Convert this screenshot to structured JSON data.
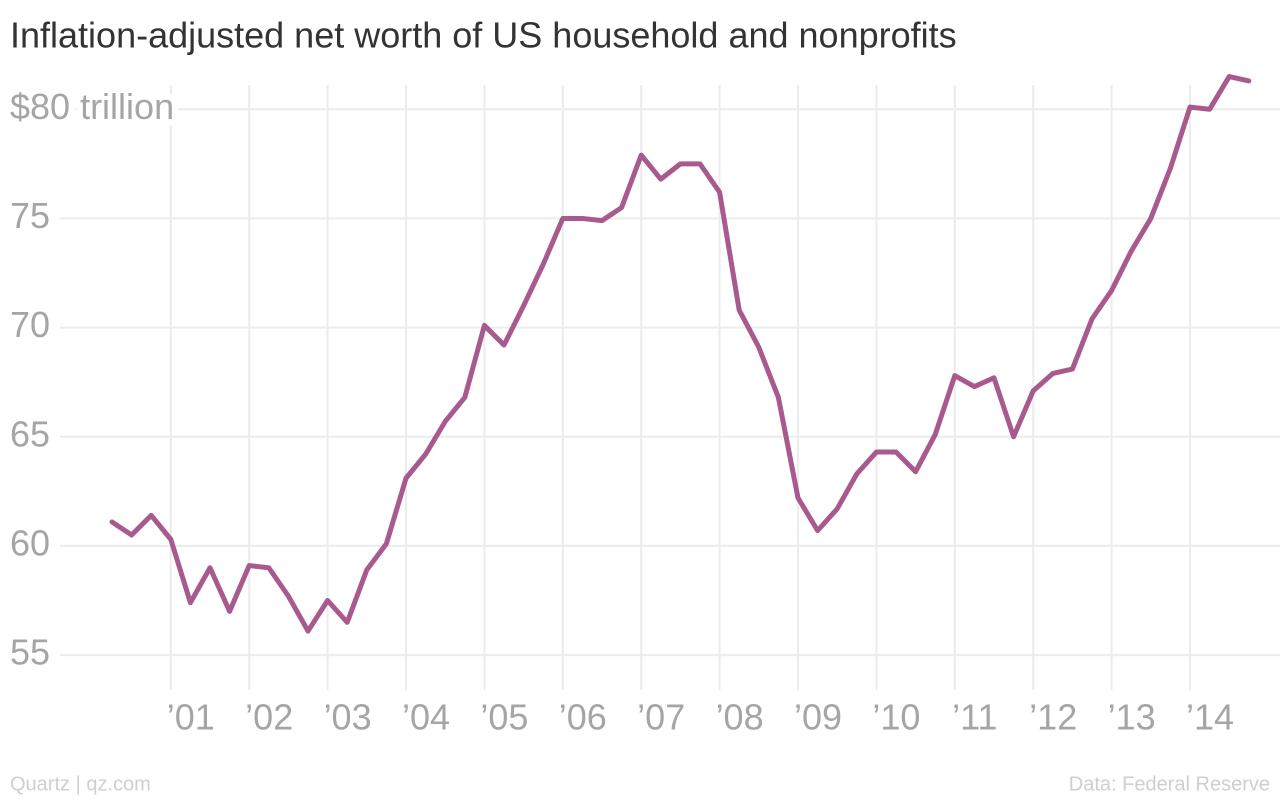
{
  "chart_data": {
    "type": "line",
    "title": "Inflation-adjusted net worth of US household and nonprofits",
    "source_left": "Quartz | qz.com",
    "source_right": "Data: Federal Reserve",
    "x": [
      2000.25,
      2000.5,
      2000.75,
      2001,
      2001.25,
      2001.5,
      2001.75,
      2002,
      2002.25,
      2002.5,
      2002.75,
      2003,
      2003.25,
      2003.5,
      2003.75,
      2004,
      2004.25,
      2004.5,
      2004.75,
      2005,
      2005.25,
      2005.5,
      2005.75,
      2006,
      2006.25,
      2006.5,
      2006.75,
      2007,
      2007.25,
      2007.5,
      2007.75,
      2008,
      2008.25,
      2008.5,
      2008.75,
      2009,
      2009.25,
      2009.5,
      2009.75,
      2010,
      2010.25,
      2010.5,
      2010.75,
      2011,
      2011.25,
      2011.5,
      2011.75,
      2012,
      2012.25,
      2012.5,
      2012.75,
      2013,
      2013.25,
      2013.5,
      2013.75,
      2014,
      2014.25,
      2014.5,
      2014.75
    ],
    "series": [
      {
        "name": "Net worth",
        "color": "#a85a8e",
        "values": [
          61.1,
          60.5,
          61.4,
          60.3,
          57.4,
          59.0,
          57.0,
          59.1,
          59.0,
          57.7,
          56.1,
          57.5,
          56.5,
          58.9,
          60.1,
          63.1,
          64.2,
          65.7,
          66.8,
          70.1,
          69.2,
          71.0,
          72.9,
          75.0,
          75.0,
          74.9,
          75.5,
          77.9,
          76.8,
          77.5,
          77.5,
          76.2,
          70.8,
          69.1,
          66.8,
          62.2,
          60.7,
          61.7,
          63.3,
          64.3,
          64.3,
          63.4,
          65.1,
          67.8,
          67.3,
          67.7,
          65.0,
          67.1,
          67.9,
          68.1,
          70.4,
          71.7,
          73.5,
          75.0,
          77.3,
          80.1,
          80.0,
          81.5,
          81.3
        ]
      }
    ],
    "xlim": [
      2000,
      2015
    ],
    "xticks": [
      {
        "value": 2001,
        "label": "’01"
      },
      {
        "value": 2002,
        "label": "’02"
      },
      {
        "value": 2003,
        "label": "’03"
      },
      {
        "value": 2004,
        "label": "’04"
      },
      {
        "value": 2005,
        "label": "’05"
      },
      {
        "value": 2006,
        "label": "’06"
      },
      {
        "value": 2007,
        "label": "’07"
      },
      {
        "value": 2008,
        "label": "’08"
      },
      {
        "value": 2009,
        "label": "’09"
      },
      {
        "value": 2010,
        "label": "’10"
      },
      {
        "value": 2011,
        "label": "’11"
      },
      {
        "value": 2012,
        "label": "’12"
      },
      {
        "value": 2013,
        "label": "’13"
      },
      {
        "value": 2014,
        "label": "’14"
      }
    ],
    "ylim": [
      53.4,
      81.8
    ],
    "yticks": [
      55,
      60,
      65,
      70,
      75,
      {
        "value": 80,
        "label": "$80 trillion"
      }
    ],
    "grid": true
  }
}
